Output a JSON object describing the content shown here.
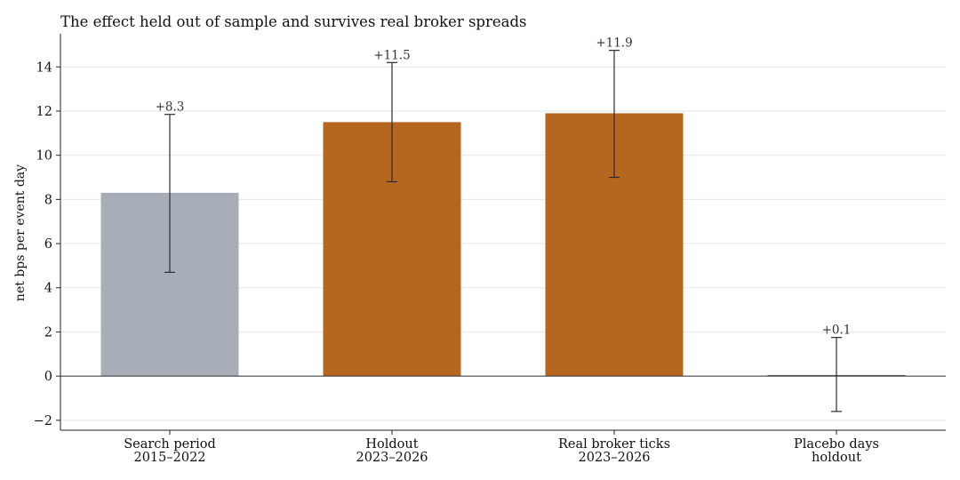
{
  "chart_data": {
    "type": "bar",
    "title": "The effect held out of sample and survives real broker spreads",
    "xlabel": "",
    "ylabel": "net bps per event day",
    "ylim": [
      -2.45,
      15.5
    ],
    "yticks": [
      -2,
      0,
      2,
      4,
      6,
      8,
      10,
      12,
      14
    ],
    "ytick_labels": [
      "−2",
      "0",
      "2",
      "4",
      "6",
      "8",
      "10",
      "12",
      "14"
    ],
    "grid": true,
    "categories": [
      [
        "Search period",
        "2015–2022"
      ],
      [
        "Holdout",
        "2023–2026"
      ],
      [
        "Real broker ticks",
        "2023–2026"
      ],
      [
        "Placebo days",
        "holdout"
      ]
    ],
    "values": [
      8.3,
      11.5,
      11.9,
      0.05
    ],
    "error_low": [
      4.7,
      8.8,
      9.0,
      -1.6
    ],
    "error_high": [
      11.85,
      14.2,
      14.75,
      1.75
    ],
    "data_labels": [
      "+8.3",
      "+11.5",
      "+11.9",
      "+0.1"
    ],
    "colors": [
      "#a8aeb7",
      "#b5671f",
      "#b5671f",
      "#555b6e"
    ]
  }
}
